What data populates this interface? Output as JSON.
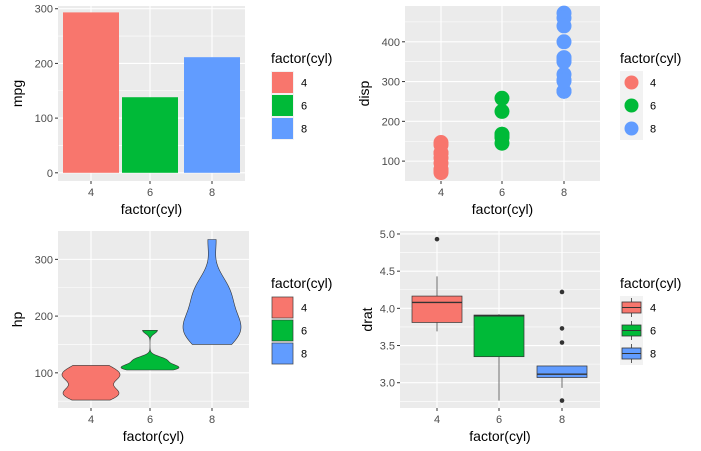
{
  "colors": {
    "4": "#F8766D",
    "6": "#00BA38",
    "8": "#619CFF"
  },
  "chart_data": [
    {
      "type": "bar",
      "xlabel": "factor(cyl)",
      "ylabel": "mpg",
      "categories": [
        "4",
        "6",
        "8"
      ],
      "values": [
        293.3,
        138.2,
        211.4
      ],
      "ylim": [
        -15,
        305
      ],
      "y_ticks": [
        "0",
        "100",
        "200",
        "300"
      ],
      "legend": {
        "title": "factor(cyl)",
        "labels": [
          "4",
          "6",
          "8"
        ],
        "position": "right"
      },
      "grid": true
    },
    {
      "type": "scatter",
      "xlabel": "factor(cyl)",
      "ylabel": "disp",
      "categories": [
        "4",
        "6",
        "8"
      ],
      "points": {
        "4": [
          108,
          146.7,
          140.8,
          78.7,
          75.7,
          71.1,
          120.1,
          79,
          120.3,
          95.1,
          121
        ],
        "6": [
          160,
          160,
          258,
          225,
          167.6,
          167.6,
          145
        ],
        "8": [
          360,
          360,
          275.8,
          275.8,
          275.8,
          472,
          460,
          440,
          318,
          304,
          350,
          400,
          351,
          301
        ]
      },
      "ylim": [
        50,
        490
      ],
      "y_ticks": [
        "100",
        "200",
        "300",
        "400"
      ],
      "legend": {
        "title": "factor(cyl)",
        "labels": [
          "4",
          "6",
          "8"
        ],
        "position": "right"
      },
      "grid": true
    },
    {
      "type": "violin",
      "xlabel": "factor(cyl)",
      "ylabel": "hp",
      "categories": [
        "4",
        "6",
        "8"
      ],
      "values": {
        "4": [
          93,
          62,
          95,
          66,
          52,
          65,
          97,
          66,
          91,
          113,
          109
        ],
        "6": [
          110,
          110,
          110,
          105,
          123,
          123,
          175
        ],
        "8": [
          175,
          245,
          180,
          180,
          180,
          205,
          215,
          230,
          150,
          150,
          245,
          175,
          264,
          335
        ]
      },
      "ylim": [
        38,
        350
      ],
      "y_ticks": [
        "100",
        "200",
        "300"
      ],
      "legend": {
        "title": "factor(cyl)",
        "labels": [
          "4",
          "6",
          "8"
        ],
        "position": "right"
      },
      "grid": true
    },
    {
      "type": "box",
      "xlabel": "factor(cyl)",
      "ylabel": "drat",
      "categories": [
        "4",
        "6",
        "8"
      ],
      "boxes": {
        "4": {
          "min": 3.69,
          "q1": 3.81,
          "median": 4.08,
          "q3": 4.165,
          "max": 4.43,
          "outliers": [
            4.93
          ]
        },
        "6": {
          "min": 2.76,
          "q1": 3.35,
          "median": 3.9,
          "q3": 3.91,
          "max": 3.92,
          "outliers": []
        },
        "8": {
          "min": 2.93,
          "q1": 3.07,
          "median": 3.115,
          "q3": 3.225,
          "max": 3.23,
          "outliers": [
            2.76,
            3.54,
            3.73,
            4.22
          ]
        }
      },
      "ylim": [
        2.66,
        5.04
      ],
      "y_ticks": [
        "3.0",
        "3.5",
        "4.0",
        "4.5",
        "5.0"
      ],
      "legend": {
        "title": "factor(cyl)",
        "labels": [
          "4",
          "6",
          "8"
        ],
        "position": "right"
      },
      "grid": true
    }
  ]
}
